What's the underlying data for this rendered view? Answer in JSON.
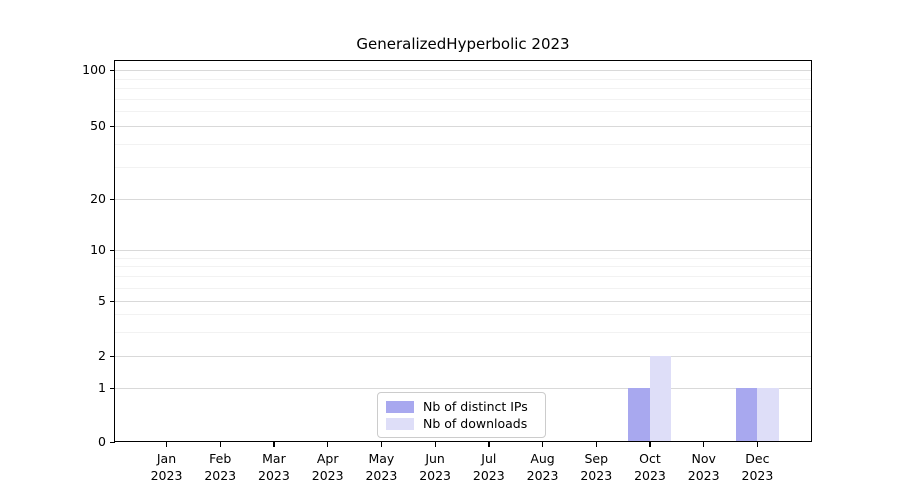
{
  "chart_data": {
    "type": "bar",
    "title": "GeneralizedHyperbolic 2023",
    "categories": [
      "Jan 2023",
      "Feb 2023",
      "Mar 2023",
      "Apr 2023",
      "May 2023",
      "Jun 2023",
      "Jul 2023",
      "Aug 2023",
      "Sep 2023",
      "Oct 2023",
      "Nov 2023",
      "Dec 2023"
    ],
    "series": [
      {
        "name": "Nb of distinct IPs",
        "color": "#a8a8ef",
        "values": [
          0,
          0,
          0,
          0,
          0,
          0,
          0,
          0,
          0,
          1,
          0,
          1
        ]
      },
      {
        "name": "Nb of downloads",
        "color": "#dedef8",
        "values": [
          0,
          0,
          0,
          0,
          0,
          0,
          0,
          0,
          0,
          2,
          0,
          1
        ]
      }
    ],
    "xlabel": "",
    "ylabel": "",
    "yscale": "symlog",
    "yticks": [
      0,
      1,
      2,
      5,
      10,
      20,
      50,
      100
    ],
    "ylim": [
      0,
      100
    ],
    "grid": "horizontal major and minor gridlines",
    "legend_position": "lower center inside plot"
  }
}
